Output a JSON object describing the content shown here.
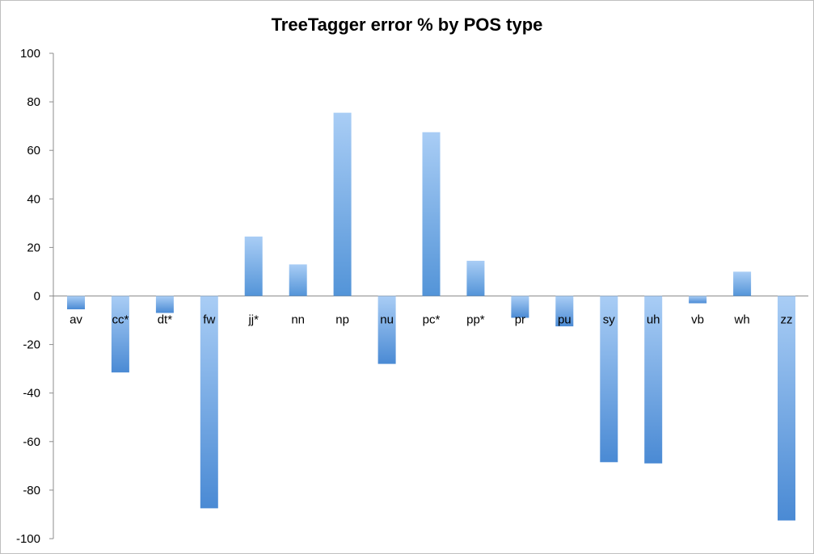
{
  "chart_data": {
    "type": "bar",
    "title": "TreeTagger error % by POS type",
    "xlabel": "",
    "ylabel": "",
    "ylim": [
      -100,
      100
    ],
    "yticks": [
      100,
      80,
      60,
      40,
      20,
      0,
      -20,
      -40,
      -60,
      -80,
      -100
    ],
    "categories": [
      "av",
      "cc*",
      "dt*",
      "fw",
      "jj*",
      "nn",
      "np",
      "nu",
      "pc*",
      "pp*",
      "pr",
      "pu",
      "sy",
      "uh",
      "vb",
      "wh",
      "zz"
    ],
    "values": [
      -5.5,
      -31.5,
      -7,
      -87.5,
      24.5,
      13,
      75.5,
      -28,
      67.5,
      14.5,
      -9,
      -12.5,
      -68.5,
      -69,
      -3,
      10,
      -92.5
    ],
    "bar_color": "#5b9bd5",
    "grid": false
  }
}
